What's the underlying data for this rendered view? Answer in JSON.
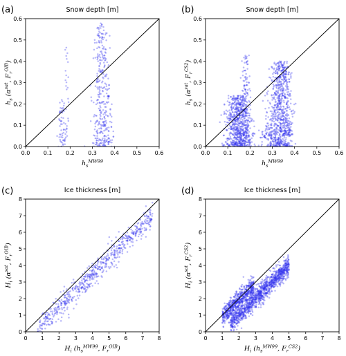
{
  "chart_data": [
    {
      "type": "scatter",
      "panel_label": "(a)",
      "title": "Snow depth [m]",
      "xlabel": {
        "base": "h",
        "sub": "s",
        "sup": "MW99"
      },
      "ylabel": {
        "base": "h",
        "sub": "s",
        "args": "(α",
        "args_sup1": "sat",
        "mid": ", F",
        "sub2": "r",
        "sup2": "OIB",
        "end": ")"
      },
      "xlim": [
        0,
        0.6
      ],
      "ylim": [
        0,
        0.6
      ],
      "xticks": [
        "0.0",
        "0.1",
        "0.2",
        "0.3",
        "0.4",
        "0.5",
        "0.6"
      ],
      "yticks": [
        "0.0",
        "0.1",
        "0.2",
        "0.3",
        "0.4",
        "0.5",
        "0.6"
      ],
      "identity_line": true,
      "color": "#3333ee",
      "clusters": [
        {
          "x_center": 0.165,
          "x_spread": 0.006,
          "y_min": 0.0,
          "y_max": 0.22,
          "count": 60
        },
        {
          "x_center": 0.185,
          "x_spread": 0.003,
          "y_min": 0.0,
          "y_max": 0.47,
          "count": 25
        },
        {
          "x_center": 0.34,
          "x_spread": 0.012,
          "y_min": 0.0,
          "y_max": 0.58,
          "count": 320
        },
        {
          "x_center": 0.37,
          "x_spread": 0.006,
          "y_min": 0.02,
          "y_max": 0.3,
          "count": 40
        }
      ]
    },
    {
      "type": "scatter",
      "panel_label": "(b)",
      "title": "Snow depth [m]",
      "xlabel": {
        "base": "h",
        "sub": "s",
        "sup": "MW99"
      },
      "ylabel": {
        "base": "h",
        "sub": "s",
        "args": "(α",
        "args_sup1": "sat",
        "mid": ", F",
        "sub2": "r",
        "sup2": "CS2",
        "end": ")"
      },
      "xlim": [
        0,
        0.6
      ],
      "ylim": [
        0,
        0.6
      ],
      "xticks": [
        "0.0",
        "0.1",
        "0.2",
        "0.3",
        "0.4",
        "0.5",
        "0.6"
      ],
      "yticks": [
        "0.0",
        "0.1",
        "0.2",
        "0.3",
        "0.4",
        "0.5",
        "0.6"
      ],
      "identity_line": true,
      "color": "#3333ee",
      "clusters": [
        {
          "x_center": 0.145,
          "x_spread": 0.02,
          "y_min": 0.0,
          "y_max": 0.24,
          "count": 700
        },
        {
          "x_center": 0.18,
          "x_spread": 0.007,
          "y_min": 0.02,
          "y_max": 0.43,
          "count": 160
        },
        {
          "x_center": 0.33,
          "x_spread": 0.018,
          "y_min": 0.0,
          "y_max": 0.4,
          "count": 700
        },
        {
          "x_center": 0.36,
          "x_spread": 0.01,
          "y_min": 0.05,
          "y_max": 0.38,
          "count": 150
        },
        {
          "x_center": 0.275,
          "x_spread": 0.008,
          "y_min": 0.04,
          "y_max": 0.1,
          "count": 40
        }
      ]
    },
    {
      "type": "scatter",
      "panel_label": "(c)",
      "title": "Ice thickness [m]",
      "xlabel": {
        "base": "H",
        "sub": "i",
        "args": "(h",
        "args_sub1": "s",
        "args_sup1": "MW99",
        "mid": ", F",
        "sub2": "r",
        "sup2": "OIB",
        "end": ")"
      },
      "ylabel": {
        "base": "H",
        "sub": "i",
        "args": "(α",
        "args_sup1": "sat",
        "mid": ", F",
        "sub2": "r",
        "sup2": "OIB",
        "end": ")"
      },
      "xlim": [
        0,
        8
      ],
      "ylim": [
        0,
        8
      ],
      "xticks": [
        "0",
        "1",
        "2",
        "3",
        "4",
        "5",
        "6",
        "7",
        "8"
      ],
      "yticks": [
        "0",
        "1",
        "2",
        "3",
        "4",
        "5",
        "6",
        "7",
        "8"
      ],
      "identity_line": true,
      "color": "#3333ee",
      "bands": [
        {
          "x_min": 0.7,
          "x_max": 7.6,
          "slope": 1.0,
          "offset": -0.55,
          "spread": 0.35,
          "count": 650
        }
      ]
    },
    {
      "type": "scatter",
      "panel_label": "(d)",
      "title": "Ice thickness [m]",
      "xlabel": {
        "base": "H",
        "sub": "i",
        "args": "(h",
        "args_sub1": "s",
        "args_sup1": "MW99",
        "mid": ", F",
        "sub2": "r",
        "sup2": "CS2",
        "end": ")"
      },
      "ylabel": {
        "base": "H",
        "sub": "i",
        "args": "(α",
        "args_sup1": "sat",
        "mid": ", F",
        "sub2": "r",
        "sup2": "CS2",
        "end": ")"
      },
      "xlim": [
        0,
        8
      ],
      "ylim": [
        0,
        8
      ],
      "xticks": [
        "0",
        "1",
        "2",
        "3",
        "4",
        "5",
        "6",
        "7",
        "8"
      ],
      "yticks": [
        "0",
        "1",
        "2",
        "3",
        "4",
        "5",
        "6",
        "7",
        "8"
      ],
      "identity_line": true,
      "color": "#3333ee",
      "bands": [
        {
          "x_min": 1.0,
          "x_max": 2.9,
          "slope": 1.0,
          "offset": -0.1,
          "spread": 0.3,
          "count": 650
        },
        {
          "x_min": 1.5,
          "x_max": 5.0,
          "slope": 1.0,
          "offset": -1.0,
          "spread": 0.3,
          "count": 1200
        }
      ]
    }
  ]
}
